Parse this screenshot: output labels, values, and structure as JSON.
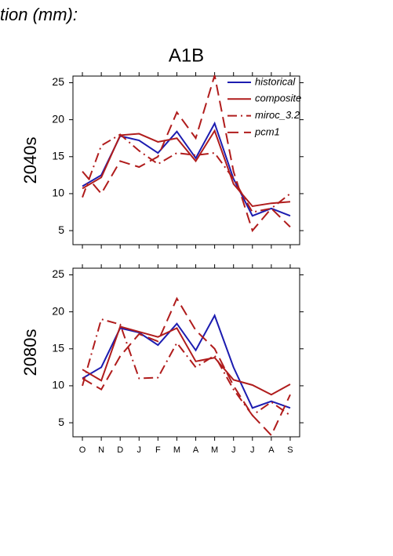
{
  "header": "tion (mm):",
  "chart_data": [
    {
      "type": "line",
      "title": "A1B",
      "y_label": "2040s",
      "categories": [
        null,
        null,
        null,
        null,
        null,
        null,
        null,
        null,
        null,
        null,
        null,
        null
      ],
      "ylim": [
        3.1,
        25.9
      ],
      "yticks": [
        5,
        10,
        15,
        20,
        25
      ],
      "legend": "upper right",
      "series": [
        {
          "name": "historical",
          "color": "#1c1cb0",
          "dash": "solid",
          "values": [
            11,
            12.5,
            17.8,
            17.2,
            15.5,
            18.4,
            14.8,
            19.5,
            12,
            7,
            8,
            7
          ]
        },
        {
          "name": "composite",
          "color": "#b01c1c",
          "dash": "solid",
          "values": [
            10.7,
            12.2,
            17.9,
            18.1,
            17,
            17.5,
            14.4,
            18.5,
            11.3,
            8.3,
            8.7,
            8.9
          ]
        },
        {
          "name": "miroc_3.2",
          "color": "#b01c1c",
          "dash": "dashdot",
          "values": [
            9.5,
            16.5,
            18,
            15.8,
            14,
            15.5,
            15.2,
            15.5,
            12,
            7.5,
            8,
            10
          ]
        },
        {
          "name": "pcm1",
          "color": "#b01c1c",
          "dash": "dashed",
          "values": [
            13,
            10,
            14.4,
            13.6,
            15,
            21,
            17.5,
            26,
            13,
            5,
            8,
            5.5
          ]
        }
      ]
    },
    {
      "type": "line",
      "y_label": "2080s",
      "categories": [
        "O",
        "N",
        "D",
        "J",
        "F",
        "M",
        "A",
        "M",
        "J",
        "J",
        "A",
        "S"
      ],
      "ylim": [
        3.1,
        25.9
      ],
      "yticks": [
        5,
        10,
        15,
        20,
        25
      ],
      "series": [
        {
          "color": "#1c1cb0",
          "dash": "solid",
          "values": [
            11,
            12.5,
            17.8,
            17.2,
            15.5,
            18.4,
            14.8,
            19.5,
            12.5,
            7,
            7.9,
            7
          ]
        },
        {
          "color": "#b01c1c",
          "dash": "solid",
          "values": [
            12.2,
            10.7,
            18,
            17.3,
            16.6,
            17.8,
            13.3,
            13.8,
            10.8,
            10.1,
            8.8,
            10.2
          ]
        },
        {
          "color": "#b01c1c",
          "dash": "dashdot",
          "values": [
            10,
            19,
            18.3,
            11,
            11.1,
            15.8,
            12.5,
            14.1,
            9.5,
            6,
            7.8,
            6
          ]
        },
        {
          "color": "#b01c1c",
          "dash": "dashed",
          "values": [
            11,
            9.5,
            14,
            17,
            16,
            21.8,
            17.5,
            15,
            10,
            6,
            3.3,
            8.8
          ]
        }
      ]
    }
  ]
}
